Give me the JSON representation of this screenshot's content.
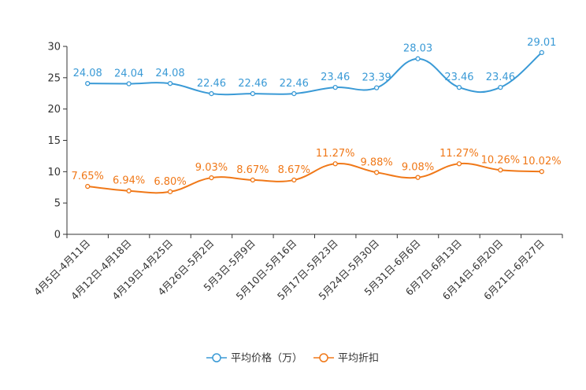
{
  "chart_data": {
    "type": "line",
    "smooth": true,
    "categories": [
      "4月5日-4月11日",
      "4月12日-4月18日",
      "4月19日-4月25日",
      "4月26日-5月2日",
      "5月3日-5月9日",
      "5月10日-5月16日",
      "5月17日-5月23日",
      "5月24日-5月30日",
      "5月31日-6月6日",
      "6月7日-6月13日",
      "6月14日-6月20日",
      "6月21日-6月27日"
    ],
    "ylim": [
      0,
      30
    ],
    "yticks": [
      "0",
      "5",
      "10",
      "15",
      "20",
      "25",
      "30"
    ],
    "grid": false,
    "legend_position": "bottom-center",
    "series": [
      {
        "name": "平均价格（万）",
        "color": "#3a9ad6",
        "values": [
          24.08,
          24.04,
          24.08,
          22.46,
          22.46,
          22.46,
          23.46,
          23.39,
          28.03,
          23.46,
          23.46,
          29.01
        ],
        "labels": [
          "24.08",
          "24.04",
          "24.08",
          "22.46",
          "22.46",
          "22.46",
          "23.46",
          "23.39",
          "28.03",
          "23.46",
          "23.46",
          "29.01"
        ]
      },
      {
        "name": "平均折扣",
        "color": "#f07818",
        "values": [
          7.65,
          6.94,
          6.8,
          9.03,
          8.67,
          8.67,
          11.27,
          9.88,
          9.08,
          11.27,
          10.26,
          10.02
        ],
        "labels": [
          "7.65%",
          "6.94%",
          "6.80%",
          "9.03%",
          "8.67%",
          "8.67%",
          "11.27%",
          "9.88%",
          "9.08%",
          "11.27%",
          "10.26%",
          "10.02%"
        ]
      }
    ]
  }
}
